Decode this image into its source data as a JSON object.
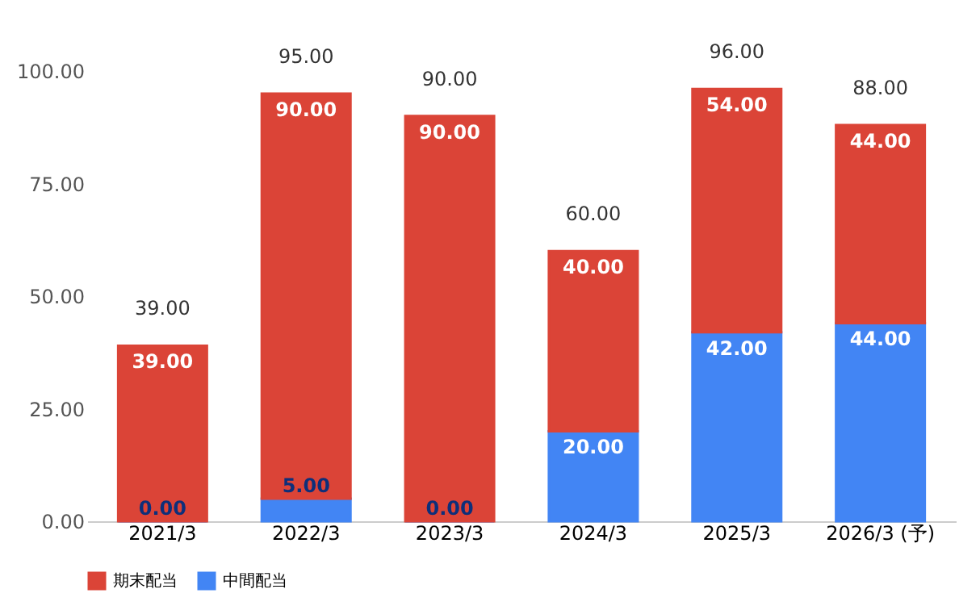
{
  "chart_data": {
    "type": "bar",
    "stacked": true,
    "categories": [
      "2021/3",
      "2022/3",
      "2023/3",
      "2024/3",
      "2025/3",
      "2026/3 (予)"
    ],
    "series": [
      {
        "name": "中間配当",
        "color": "#4285f4",
        "values": [
          0,
          5,
          0,
          20,
          42,
          44
        ],
        "value_labels": [
          "0.00",
          "5.00",
          "0.00",
          "20.00",
          "42.00",
          "44.00"
        ]
      },
      {
        "name": "期末配当",
        "color": "#db4437",
        "values": [
          39,
          90,
          90,
          40,
          54,
          44
        ],
        "value_labels": [
          "39.00",
          "90.00",
          "90.00",
          "40.00",
          "54.00",
          "44.00"
        ]
      }
    ],
    "totals": [
      "39.00",
      "95.00",
      "90.00",
      "60.00",
      "96.00",
      "88.00"
    ],
    "ylim": [
      0,
      100
    ],
    "yticks": [
      {
        "value": 0,
        "label": "0.00"
      },
      {
        "value": 25,
        "label": "25.00"
      },
      {
        "value": 50,
        "label": "50.00"
      },
      {
        "value": 75,
        "label": "75.00"
      },
      {
        "value": 100,
        "label": "100.00"
      }
    ],
    "grid": false,
    "legend": "bottom"
  }
}
